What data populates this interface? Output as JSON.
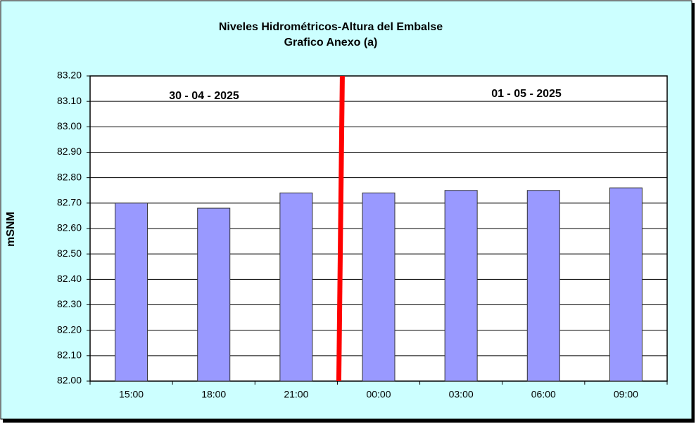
{
  "chart_data": {
    "type": "bar",
    "title": "Niveles Hidrométricos-Altura del Embalse",
    "subtitle": "Grafico Anexo (a)",
    "y_label": "mSNM",
    "annotations": [
      "30 - 04 - 2025",
      "01 - 05 - 2025"
    ],
    "categories": [
      "15:00",
      "18:00",
      "21:00",
      "00:00",
      "03:00",
      "06:00",
      "09:00"
    ],
    "values": [
      82.7,
      82.68,
      82.74,
      82.74,
      82.75,
      82.75,
      82.76
    ],
    "color": "#9999ff",
    "ylim": [
      82,
      83.2
    ],
    "yticks": [
      {
        "value": 82,
        "label": "82.00"
      },
      {
        "value": 82.1,
        "label": "82.10"
      },
      {
        "value": 82.2,
        "label": "82.20"
      },
      {
        "value": 82.3,
        "label": "82.30"
      },
      {
        "value": 82.4,
        "label": "82.40"
      },
      {
        "value": 82.5,
        "label": "82.50"
      },
      {
        "value": 82.6,
        "label": "82.60"
      },
      {
        "value": 82.7,
        "label": "82.70"
      },
      {
        "value": 82.8,
        "label": "82.80"
      },
      {
        "value": 82.9,
        "label": "82.90"
      },
      {
        "value": 83,
        "label": "83.00"
      },
      {
        "value": 83.1,
        "label": "83.10"
      },
      {
        "value": 83.2,
        "label": "83.20"
      }
    ],
    "grid": true
  }
}
